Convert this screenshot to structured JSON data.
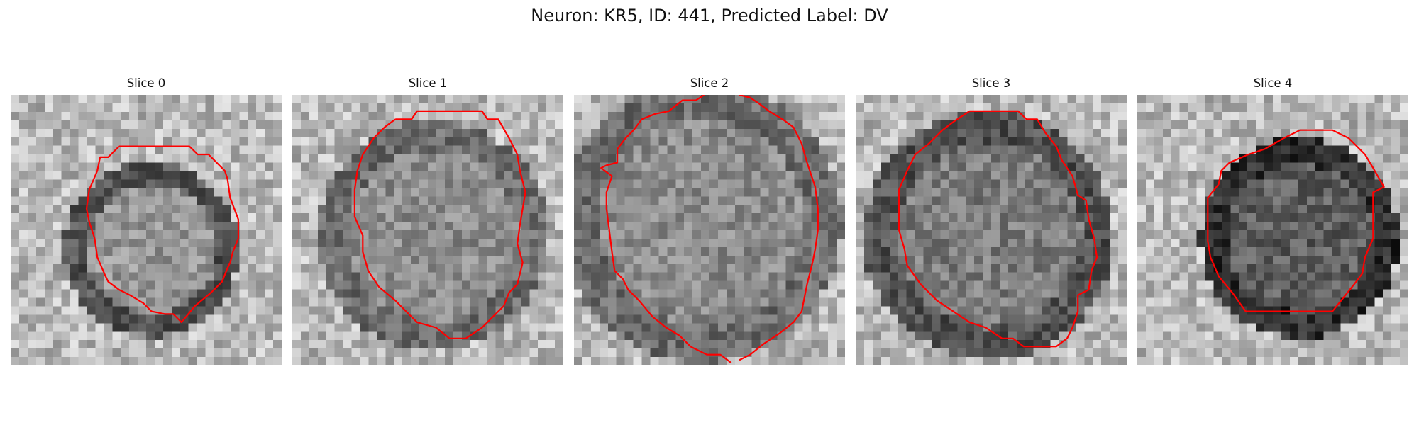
{
  "figure": {
    "title": "Neuron: KR5, ID: 441, Predicted Label: DV"
  },
  "colors": {
    "contour": "#ff0000",
    "background": "#ffffff"
  },
  "panels": [
    {
      "title": "Slice 0",
      "cell_center": [
        0.52,
        0.57
      ],
      "cell_radius": 0.28,
      "rim": "strong",
      "interior_gray": 150,
      "contour": [
        [
          0.4,
          0.19
        ],
        [
          0.66,
          0.19
        ],
        [
          0.69,
          0.22
        ],
        [
          0.73,
          0.22
        ],
        [
          0.79,
          0.28
        ],
        [
          0.8,
          0.31
        ],
        [
          0.81,
          0.38
        ],
        [
          0.84,
          0.46
        ],
        [
          0.84,
          0.53
        ],
        [
          0.82,
          0.58
        ],
        [
          0.81,
          0.62
        ],
        [
          0.8,
          0.64
        ],
        [
          0.78,
          0.69
        ],
        [
          0.74,
          0.73
        ],
        [
          0.68,
          0.78
        ],
        [
          0.63,
          0.84
        ],
        [
          0.6,
          0.81
        ],
        [
          0.57,
          0.81
        ],
        [
          0.52,
          0.8
        ],
        [
          0.49,
          0.77
        ],
        [
          0.44,
          0.74
        ],
        [
          0.4,
          0.72
        ],
        [
          0.36,
          0.69
        ],
        [
          0.35,
          0.67
        ],
        [
          0.32,
          0.6
        ],
        [
          0.31,
          0.53
        ],
        [
          0.29,
          0.47
        ],
        [
          0.28,
          0.42
        ],
        [
          0.29,
          0.35
        ],
        [
          0.32,
          0.28
        ],
        [
          0.33,
          0.23
        ],
        [
          0.36,
          0.23
        ],
        [
          0.4,
          0.19
        ]
      ]
    },
    {
      "title": "Slice 1",
      "cell_center": [
        0.52,
        0.52
      ],
      "cell_radius": 0.37,
      "rim": "weak",
      "interior_gray": 140,
      "contour": [
        [
          0.38,
          0.09
        ],
        [
          0.44,
          0.09
        ],
        [
          0.46,
          0.06
        ],
        [
          0.7,
          0.06
        ],
        [
          0.72,
          0.09
        ],
        [
          0.76,
          0.09
        ],
        [
          0.8,
          0.16
        ],
        [
          0.83,
          0.22
        ],
        [
          0.84,
          0.28
        ],
        [
          0.86,
          0.36
        ],
        [
          0.85,
          0.42
        ],
        [
          0.84,
          0.48
        ],
        [
          0.83,
          0.55
        ],
        [
          0.85,
          0.62
        ],
        [
          0.83,
          0.7
        ],
        [
          0.8,
          0.73
        ],
        [
          0.78,
          0.78
        ],
        [
          0.74,
          0.82
        ],
        [
          0.7,
          0.86
        ],
        [
          0.64,
          0.9
        ],
        [
          0.58,
          0.9
        ],
        [
          0.53,
          0.86
        ],
        [
          0.46,
          0.84
        ],
        [
          0.42,
          0.8
        ],
        [
          0.38,
          0.76
        ],
        [
          0.32,
          0.71
        ],
        [
          0.28,
          0.65
        ],
        [
          0.26,
          0.58
        ],
        [
          0.26,
          0.52
        ],
        [
          0.23,
          0.45
        ],
        [
          0.23,
          0.35
        ],
        [
          0.24,
          0.28
        ],
        [
          0.26,
          0.22
        ],
        [
          0.3,
          0.16
        ],
        [
          0.34,
          0.12
        ],
        [
          0.38,
          0.09
        ]
      ]
    },
    {
      "title": "Slice 2",
      "cell_center": [
        0.47,
        0.47
      ],
      "cell_radius": 0.45,
      "rim": "weak",
      "interior_gray": 140,
      "contour_parts": [
        [
          [
            0.48,
            0.0
          ],
          [
            0.45,
            0.02
          ],
          [
            0.4,
            0.02
          ],
          [
            0.35,
            0.06
          ],
          [
            0.3,
            0.07
          ],
          [
            0.25,
            0.09
          ],
          [
            0.22,
            0.13
          ],
          [
            0.19,
            0.16
          ],
          [
            0.16,
            0.2
          ],
          [
            0.16,
            0.25
          ],
          [
            0.12,
            0.26
          ],
          [
            0.1,
            0.27
          ],
          [
            0.14,
            0.3
          ],
          [
            0.12,
            0.36
          ],
          [
            0.12,
            0.42
          ],
          [
            0.13,
            0.5
          ],
          [
            0.14,
            0.58
          ],
          [
            0.15,
            0.65
          ],
          [
            0.18,
            0.68
          ],
          [
            0.2,
            0.72
          ],
          [
            0.24,
            0.76
          ],
          [
            0.29,
            0.82
          ],
          [
            0.34,
            0.86
          ],
          [
            0.39,
            0.89
          ],
          [
            0.43,
            0.93
          ],
          [
            0.49,
            0.96
          ],
          [
            0.54,
            0.96
          ],
          [
            0.58,
            0.99
          ]
        ],
        [
          [
            0.61,
            0.98
          ],
          [
            0.65,
            0.96
          ],
          [
            0.7,
            0.92
          ],
          [
            0.76,
            0.88
          ],
          [
            0.81,
            0.84
          ],
          [
            0.84,
            0.8
          ],
          [
            0.86,
            0.7
          ],
          [
            0.88,
            0.62
          ],
          [
            0.89,
            0.57
          ],
          [
            0.9,
            0.5
          ],
          [
            0.9,
            0.42
          ],
          [
            0.89,
            0.34
          ],
          [
            0.86,
            0.25
          ],
          [
            0.84,
            0.18
          ],
          [
            0.81,
            0.12
          ],
          [
            0.77,
            0.09
          ],
          [
            0.72,
            0.06
          ],
          [
            0.68,
            0.03
          ],
          [
            0.65,
            0.01
          ],
          [
            0.61,
            0.0
          ]
        ]
      ]
    },
    {
      "title": "Slice 3",
      "cell_center": [
        0.49,
        0.52
      ],
      "cell_radius": 0.4,
      "rim": "medium",
      "interior_gray": 125,
      "contour": [
        [
          0.42,
          0.06
        ],
        [
          0.6,
          0.06
        ],
        [
          0.63,
          0.09
        ],
        [
          0.67,
          0.09
        ],
        [
          0.7,
          0.14
        ],
        [
          0.74,
          0.19
        ],
        [
          0.76,
          0.24
        ],
        [
          0.8,
          0.3
        ],
        [
          0.82,
          0.37
        ],
        [
          0.85,
          0.39
        ],
        [
          0.86,
          0.46
        ],
        [
          0.88,
          0.53
        ],
        [
          0.89,
          0.6
        ],
        [
          0.87,
          0.65
        ],
        [
          0.86,
          0.72
        ],
        [
          0.82,
          0.74
        ],
        [
          0.82,
          0.8
        ],
        [
          0.8,
          0.86
        ],
        [
          0.78,
          0.9
        ],
        [
          0.74,
          0.93
        ],
        [
          0.7,
          0.93
        ],
        [
          0.62,
          0.93
        ],
        [
          0.58,
          0.9
        ],
        [
          0.54,
          0.9
        ],
        [
          0.48,
          0.86
        ],
        [
          0.42,
          0.84
        ],
        [
          0.36,
          0.8
        ],
        [
          0.3,
          0.76
        ],
        [
          0.24,
          0.7
        ],
        [
          0.19,
          0.63
        ],
        [
          0.18,
          0.57
        ],
        [
          0.16,
          0.5
        ],
        [
          0.16,
          0.42
        ],
        [
          0.16,
          0.35
        ],
        [
          0.19,
          0.28
        ],
        [
          0.22,
          0.22
        ],
        [
          0.27,
          0.18
        ],
        [
          0.32,
          0.13
        ],
        [
          0.36,
          0.1
        ],
        [
          0.42,
          0.06
        ]
      ]
    },
    {
      "title": "Slice 4",
      "cell_center": [
        0.6,
        0.53
      ],
      "cell_radius": 0.32,
      "rim": "dark-core",
      "interior_gray": 95,
      "contour": [
        [
          0.47,
          0.2
        ],
        [
          0.54,
          0.16
        ],
        [
          0.6,
          0.13
        ],
        [
          0.72,
          0.13
        ],
        [
          0.78,
          0.16
        ],
        [
          0.84,
          0.22
        ],
        [
          0.87,
          0.27
        ],
        [
          0.91,
          0.34
        ],
        [
          0.87,
          0.36
        ],
        [
          0.87,
          0.45
        ],
        [
          0.87,
          0.53
        ],
        [
          0.84,
          0.6
        ],
        [
          0.83,
          0.66
        ],
        [
          0.8,
          0.7
        ],
        [
          0.76,
          0.75
        ],
        [
          0.72,
          0.8
        ],
        [
          0.66,
          0.8
        ],
        [
          0.4,
          0.8
        ],
        [
          0.35,
          0.73
        ],
        [
          0.3,
          0.67
        ],
        [
          0.27,
          0.6
        ],
        [
          0.26,
          0.54
        ],
        [
          0.26,
          0.46
        ],
        [
          0.26,
          0.38
        ],
        [
          0.3,
          0.33
        ],
        [
          0.31,
          0.28
        ],
        [
          0.34,
          0.25
        ],
        [
          0.41,
          0.22
        ],
        [
          0.47,
          0.2
        ]
      ]
    }
  ]
}
